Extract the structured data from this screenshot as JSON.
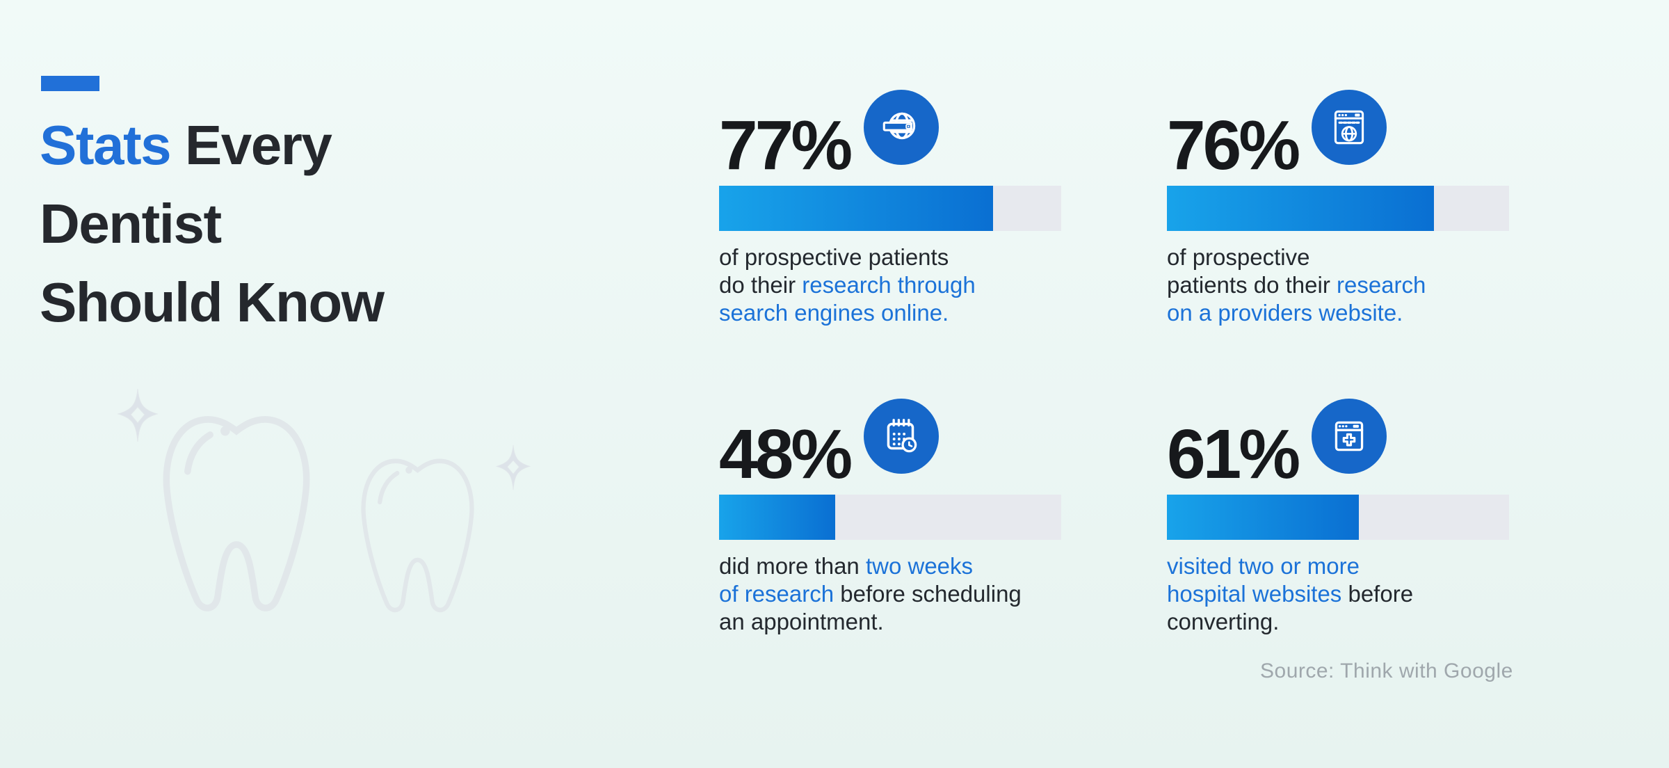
{
  "theme": {
    "background_top": "#f1faf8",
    "background_bottom": "#e7f3f0",
    "accent_blue": "#2170d8",
    "icon_circle_blue": "#1667c9",
    "bar_fill_start": "#18a3ea",
    "bar_fill_end": "#0a6fd2",
    "bar_track": "#e7e9ee",
    "heading_dark": "#25282d",
    "number_dark": "#17191c",
    "body_dark": "#23282e",
    "body_blue": "#1b72d8",
    "source_gray": "#9fa7ac",
    "decor_gray": "#e1e7ea"
  },
  "title": {
    "lines": [
      [
        {
          "t": "Stats",
          "hl": true
        },
        {
          "t": " Every",
          "hl": false
        }
      ],
      [
        {
          "t": "Dentist",
          "hl": false
        }
      ],
      [
        {
          "t": "Should Know",
          "hl": false
        }
      ]
    ]
  },
  "stats": [
    {
      "value": "77%",
      "value_number": 77,
      "bar_fill_percent": 80,
      "icon": "globe-search-icon",
      "desc_lines": [
        [
          {
            "t": "of prospective patients",
            "hl": false
          }
        ],
        [
          {
            "t": "do their ",
            "hl": false
          },
          {
            "t": "research through",
            "hl": true
          }
        ],
        [
          {
            "t": "search engines online.",
            "hl": true
          }
        ]
      ]
    },
    {
      "value": "76%",
      "value_number": 76,
      "bar_fill_percent": 78,
      "icon": "browser-globe-icon",
      "desc_lines": [
        [
          {
            "t": "of prospective",
            "hl": false
          }
        ],
        [
          {
            "t": "patients do their ",
            "hl": false
          },
          {
            "t": "research",
            "hl": true
          }
        ],
        [
          {
            "t": "on a providers website.",
            "hl": true
          }
        ]
      ]
    },
    {
      "value": "48%",
      "value_number": 48,
      "bar_fill_percent": 34,
      "icon": "calendar-clock-icon",
      "desc_lines": [
        [
          {
            "t": "did more than ",
            "hl": false
          },
          {
            "t": "two weeks",
            "hl": true
          }
        ],
        [
          {
            "t": "of research",
            "hl": true
          },
          {
            "t": " before scheduling",
            "hl": false
          }
        ],
        [
          {
            "t": "an appointment.",
            "hl": false
          }
        ]
      ]
    },
    {
      "value": "61%",
      "value_number": 61,
      "bar_fill_percent": 56,
      "icon": "browser-medical-icon",
      "desc_lines": [
        [
          {
            "t": "visited two or more",
            "hl": true
          }
        ],
        [
          {
            "t": "hospital websites",
            "hl": true
          },
          {
            "t": " before",
            "hl": false
          }
        ],
        [
          {
            "t": "converting.",
            "hl": false
          }
        ]
      ]
    }
  ],
  "source_note": "Source: Think with Google",
  "chart_data": {
    "type": "bar",
    "orientation": "horizontal",
    "title": "Stats Every Dentist Should Know",
    "categories": [
      "of prospective patients do their research through search engines online",
      "of prospective patients do their research on a providers website",
      "did more than two weeks of research before scheduling an appointment",
      "visited two or more hospital websites before converting"
    ],
    "values": [
      77,
      76,
      48,
      61
    ],
    "unit": "%",
    "xlim": [
      0,
      100
    ],
    "grid": false,
    "legend": "none",
    "source": "Source: Think with Google"
  }
}
